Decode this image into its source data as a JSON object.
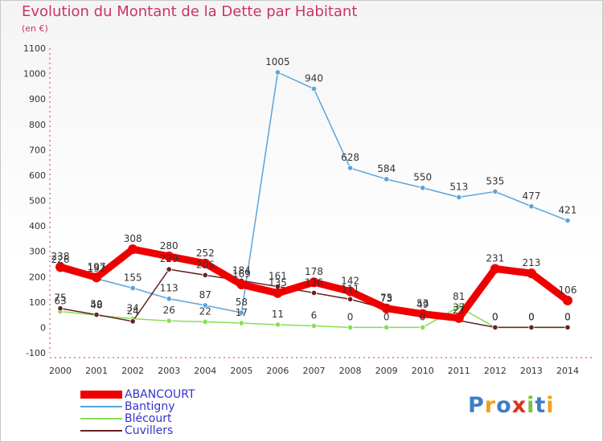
{
  "title": "Evolution du Montant de la Dette par Habitant",
  "subtitle": "(en €)",
  "logo": {
    "letters": [
      "P",
      "r",
      "o",
      "x",
      "i",
      "t",
      "i"
    ],
    "colors": [
      "#3d7ec8",
      "#f0a020",
      "#3d7ec8",
      "#e03020",
      "#7cc040",
      "#3d7ec8",
      "#f0a020"
    ]
  },
  "chart_data": {
    "type": "line",
    "title": "Evolution du Montant de la Dette par Habitant",
    "ylabel": "(en €)",
    "xlabel": "",
    "ylim": [
      -100,
      1100
    ],
    "yticks": [
      -100,
      0,
      100,
      200,
      300,
      400,
      500,
      600,
      700,
      800,
      900,
      1000,
      1100
    ],
    "x": [
      2000,
      2001,
      2002,
      2003,
      2004,
      2005,
      2006,
      2007,
      2008,
      2009,
      2010,
      2011,
      2012,
      2013,
      2014
    ],
    "series": [
      {
        "name": "ABANCOURT",
        "color": "#ee0000",
        "width": 9,
        "values": [
          238,
          197,
          308,
          280,
          252,
          169,
          135,
          178,
          142,
          75,
          53,
          37,
          231,
          213,
          106
        ]
      },
      {
        "name": "Bantigny",
        "color": "#5ba3d9",
        "width": 1.5,
        "values": [
          226,
          192,
          155,
          113,
          87,
          58,
          1005,
          940,
          628,
          584,
          550,
          513,
          535,
          477,
          421
        ]
      },
      {
        "name": "Blécourt",
        "color": "#88dd55",
        "width": 1.5,
        "values": [
          63,
          48,
          34,
          26,
          22,
          17,
          11,
          6,
          0,
          0,
          0,
          81,
          0,
          0,
          0
        ]
      },
      {
        "name": "Cuvillers",
        "color": "#662222",
        "width": 1.5,
        "values": [
          75,
          50,
          24,
          229,
          206,
          184,
          161,
          136,
          111,
          73,
          49,
          27,
          0,
          0,
          0
        ]
      }
    ],
    "legend_position": "bottom-left",
    "grid": false
  }
}
